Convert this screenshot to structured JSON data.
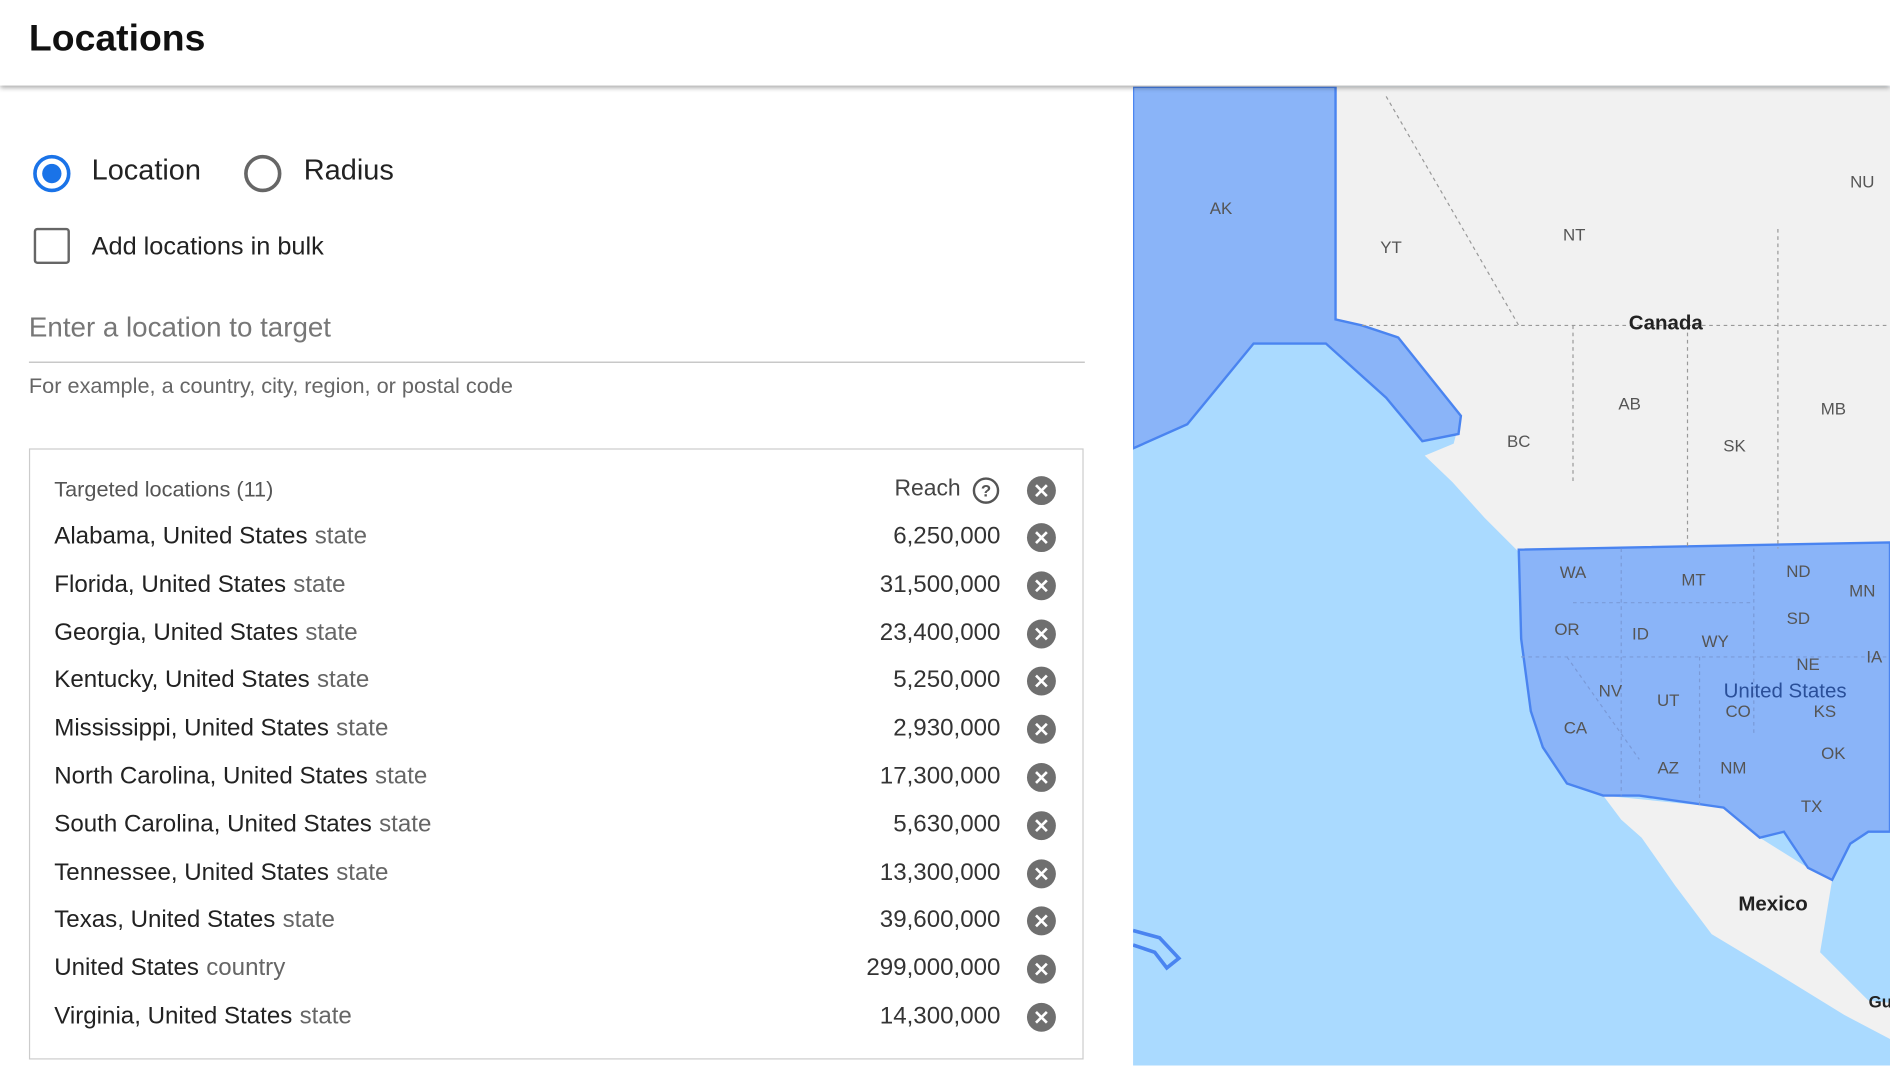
{
  "header": {
    "title": "Locations"
  },
  "targeting": {
    "options": [
      "Location",
      "Radius"
    ],
    "bulk": "Add locations in bulk",
    "input_placeholder": "Enter a location to target",
    "helper": "For example, a country, city, region, or postal code"
  },
  "table": {
    "title": "Targeted locations (11)",
    "reach_header": "Reach",
    "rows": [
      {
        "name": "Alabama, United States",
        "type": "state",
        "reach": "6,250,000"
      },
      {
        "name": "Florida, United States",
        "type": "state",
        "reach": "31,500,000"
      },
      {
        "name": "Georgia, United States",
        "type": "state",
        "reach": "23,400,000"
      },
      {
        "name": "Kentucky, United States",
        "type": "state",
        "reach": "5,250,000"
      },
      {
        "name": "Mississippi, United States",
        "type": "state",
        "reach": "2,930,000"
      },
      {
        "name": "North Carolina, United States",
        "type": "state",
        "reach": "17,300,000"
      },
      {
        "name": "South Carolina, United States",
        "type": "state",
        "reach": "5,630,000"
      },
      {
        "name": "Tennessee, United States",
        "type": "state",
        "reach": "13,300,000"
      },
      {
        "name": "Texas, United States",
        "type": "state",
        "reach": "39,600,000"
      },
      {
        "name": "United States",
        "type": "country",
        "reach": "299,000,000"
      },
      {
        "name": "Virginia, United States",
        "type": "state",
        "reach": "14,300,000"
      }
    ]
  },
  "map": {
    "labels": [
      "AK",
      "YT",
      "NT",
      "NU",
      "Canada",
      "BC",
      "AB",
      "SK",
      "MB",
      "WA",
      "MT",
      "ND",
      "MN",
      "OR",
      "ID",
      "WY",
      "SD",
      "NE",
      "IA",
      "NV",
      "UT",
      "United States",
      "CO",
      "KS",
      "CA",
      "AZ",
      "NM",
      "OK",
      "TX",
      "Mexico",
      "Gu"
    ]
  }
}
